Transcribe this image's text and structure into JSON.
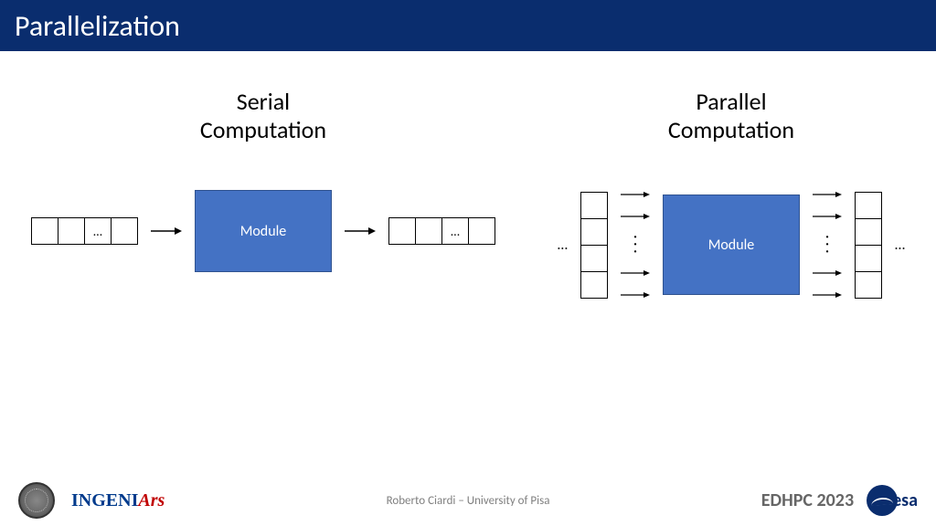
{
  "header": {
    "title": "Parallelization",
    "background_color": "#0a2d6e",
    "title_color": "#ffffff"
  },
  "serial": {
    "title_l1": "Serial",
    "title_l2": "Computation",
    "module_label": "Module",
    "module_width": 150,
    "module_height": 90,
    "module_fill": "#4472c4",
    "cell_ellipsis": "…",
    "arrow_length": 30,
    "arrow_color": "#000000"
  },
  "parallel": {
    "title_l1": "Parallel",
    "title_l2": "Computation",
    "module_label": "Module",
    "module_width": 150,
    "module_height": 110,
    "module_fill": "#4472c4",
    "cell_ellipsis": "…",
    "arrow_length": 30,
    "arrow_count": 4,
    "arrow_color": "#000000"
  },
  "footer": {
    "ingeniars_1": "INGENI",
    "ingeniars_2": "Ars",
    "center_text": "Roberto Ciardi – University of Pisa",
    "edhpc": "EDHPC 2023",
    "esa": "esa"
  },
  "style": {
    "title_fontsize": 26,
    "title_color": "#000000",
    "cell_border": "#000000"
  }
}
